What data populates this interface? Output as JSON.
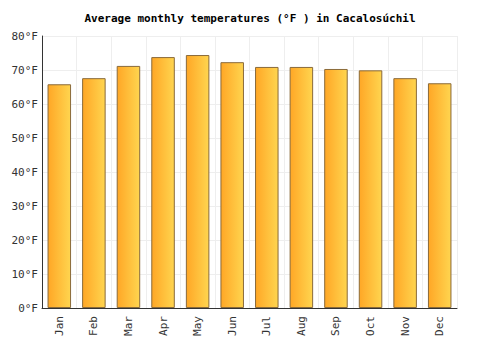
{
  "chart_data": {
    "type": "bar",
    "title": "Average monthly temperatures (°F ) in Cacalosúchil",
    "categories": [
      "Jan",
      "Feb",
      "Mar",
      "Apr",
      "May",
      "Jun",
      "Jul",
      "Aug",
      "Sep",
      "Oct",
      "Nov",
      "Dec"
    ],
    "values": [
      65.8,
      67.6,
      71.2,
      73.8,
      74.4,
      72.3,
      70.9,
      70.9,
      70.3,
      69.9,
      67.6,
      66.1
    ],
    "color": "#ffa726",
    "ylim": [
      0,
      80
    ],
    "yticks": [
      {
        "value": 0,
        "label": "0°F"
      },
      {
        "value": 10,
        "label": "10°F"
      },
      {
        "value": 20,
        "label": "20°F"
      },
      {
        "value": 30,
        "label": "30°F"
      },
      {
        "value": 40,
        "label": "40°F"
      },
      {
        "value": 50,
        "label": "50°F"
      },
      {
        "value": 60,
        "label": "60°F"
      },
      {
        "value": 70,
        "label": "70°F"
      },
      {
        "value": 80,
        "label": "80°F"
      }
    ],
    "grid": true
  }
}
